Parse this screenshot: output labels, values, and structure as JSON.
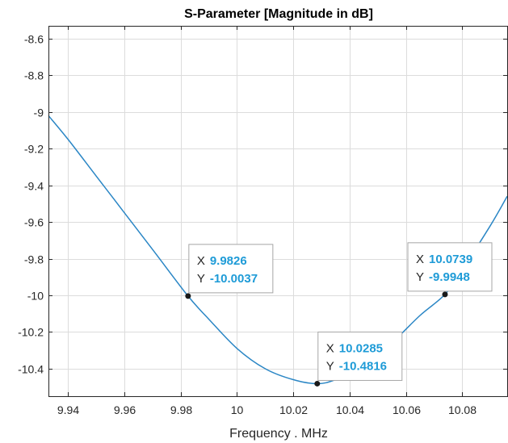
{
  "chart_data": {
    "type": "line",
    "title": "S-Parameter [Magnitude in dB]",
    "xlabel": "Frequency . MHz",
    "ylabel": "",
    "xlim": [
      9.933,
      10.096
    ],
    "ylim": [
      -10.55,
      -8.53
    ],
    "x_ticks": [
      9.94,
      9.96,
      9.98,
      10,
      10.02,
      10.04,
      10.06,
      10.08
    ],
    "x_tick_labels": [
      "9.94",
      "9.96",
      "9.98",
      "10",
      "10.02",
      "10.04",
      "10.06",
      "10.08"
    ],
    "y_ticks": [
      -8.6,
      -8.8,
      -9,
      -9.2,
      -9.4,
      -9.6,
      -9.8,
      -10,
      -10.2,
      -10.4
    ],
    "y_tick_labels": [
      "-8.6",
      "-8.8",
      "-9",
      "-9.2",
      "-9.4",
      "-9.6",
      "-9.8",
      "-10",
      "-10.2",
      "-10.4"
    ],
    "grid": true,
    "series": [
      {
        "color": "#2a86c5",
        "x": [
          9.933,
          9.94,
          9.95,
          9.96,
          9.97,
          9.9826,
          9.99,
          10.0,
          10.01,
          10.02,
          10.0285,
          10.035,
          10.045,
          10.055,
          10.065,
          10.0739,
          10.08,
          10.09,
          10.096
        ],
        "y": [
          -9.02,
          -9.15,
          -9.35,
          -9.55,
          -9.75,
          -10.0037,
          -10.13,
          -10.29,
          -10.4,
          -10.46,
          -10.4816,
          -10.46,
          -10.39,
          -10.26,
          -10.11,
          -9.9948,
          -9.86,
          -9.62,
          -9.46
        ]
      }
    ],
    "datatips": [
      {
        "x_key": "X",
        "x_value": "9.9826",
        "y_key": "Y",
        "y_value": "-10.0037",
        "x": 9.9826,
        "y": -10.0037
      },
      {
        "x_key": "X",
        "x_value": "10.0285",
        "y_key": "Y",
        "y_value": "-10.4816",
        "x": 10.0285,
        "y": -10.4816
      },
      {
        "x_key": "X",
        "x_value": "10.0739",
        "y_key": "Y",
        "y_value": "-9.9948",
        "x": 10.0739,
        "y": -9.9948
      }
    ]
  }
}
